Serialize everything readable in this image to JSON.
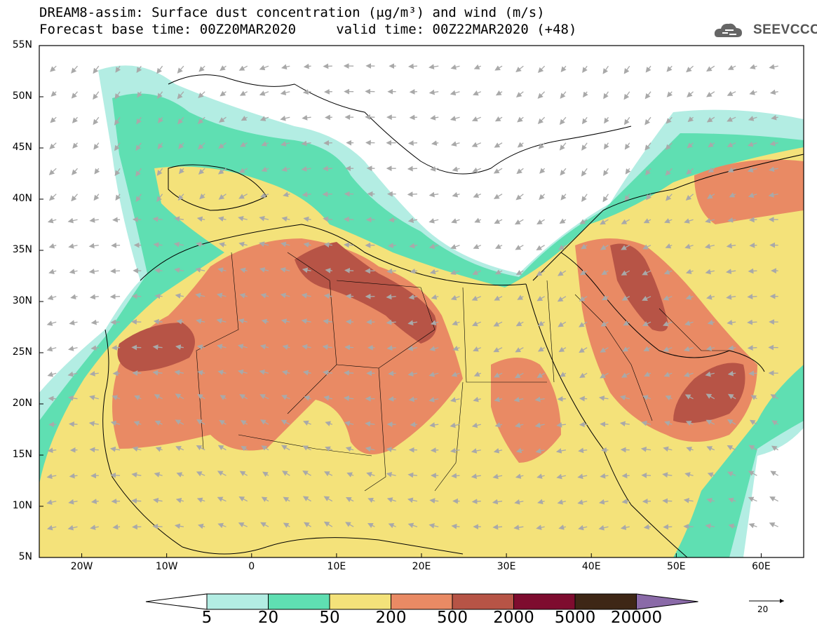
{
  "header": {
    "title_line1": "DREAM8-assim: Surface dust concentration (μg/m³) and wind (m/s)",
    "title_line2": "Forecast base time: 00Z20MAR2020     valid time: 00Z22MAR2020 (+48)"
  },
  "logo": {
    "text": "SEEVCCC",
    "icon": "cloud-logo-icon"
  },
  "map": {
    "lat_range": [
      5,
      55
    ],
    "lon_range": [
      -25,
      65
    ],
    "lat_ticks": [
      "55N",
      "50N",
      "45N",
      "40N",
      "35N",
      "30N",
      "25N",
      "20N",
      "15N",
      "10N",
      "5N"
    ],
    "lon_ticks": [
      "20W",
      "10W",
      "0",
      "10E",
      "20E",
      "30E",
      "40E",
      "50E",
      "60E"
    ]
  },
  "colorbar": {
    "labels": [
      "5",
      "20",
      "50",
      "200",
      "500",
      "2000",
      "5000",
      "20000"
    ],
    "colors": [
      "#b3ede3",
      "#5fdfb2",
      "#f4e27a",
      "#e98a64",
      "#b75446",
      "#7e0c2f",
      "#3e2716",
      "#8a6aa8"
    ]
  },
  "wind_reference": {
    "label": "20"
  }
}
